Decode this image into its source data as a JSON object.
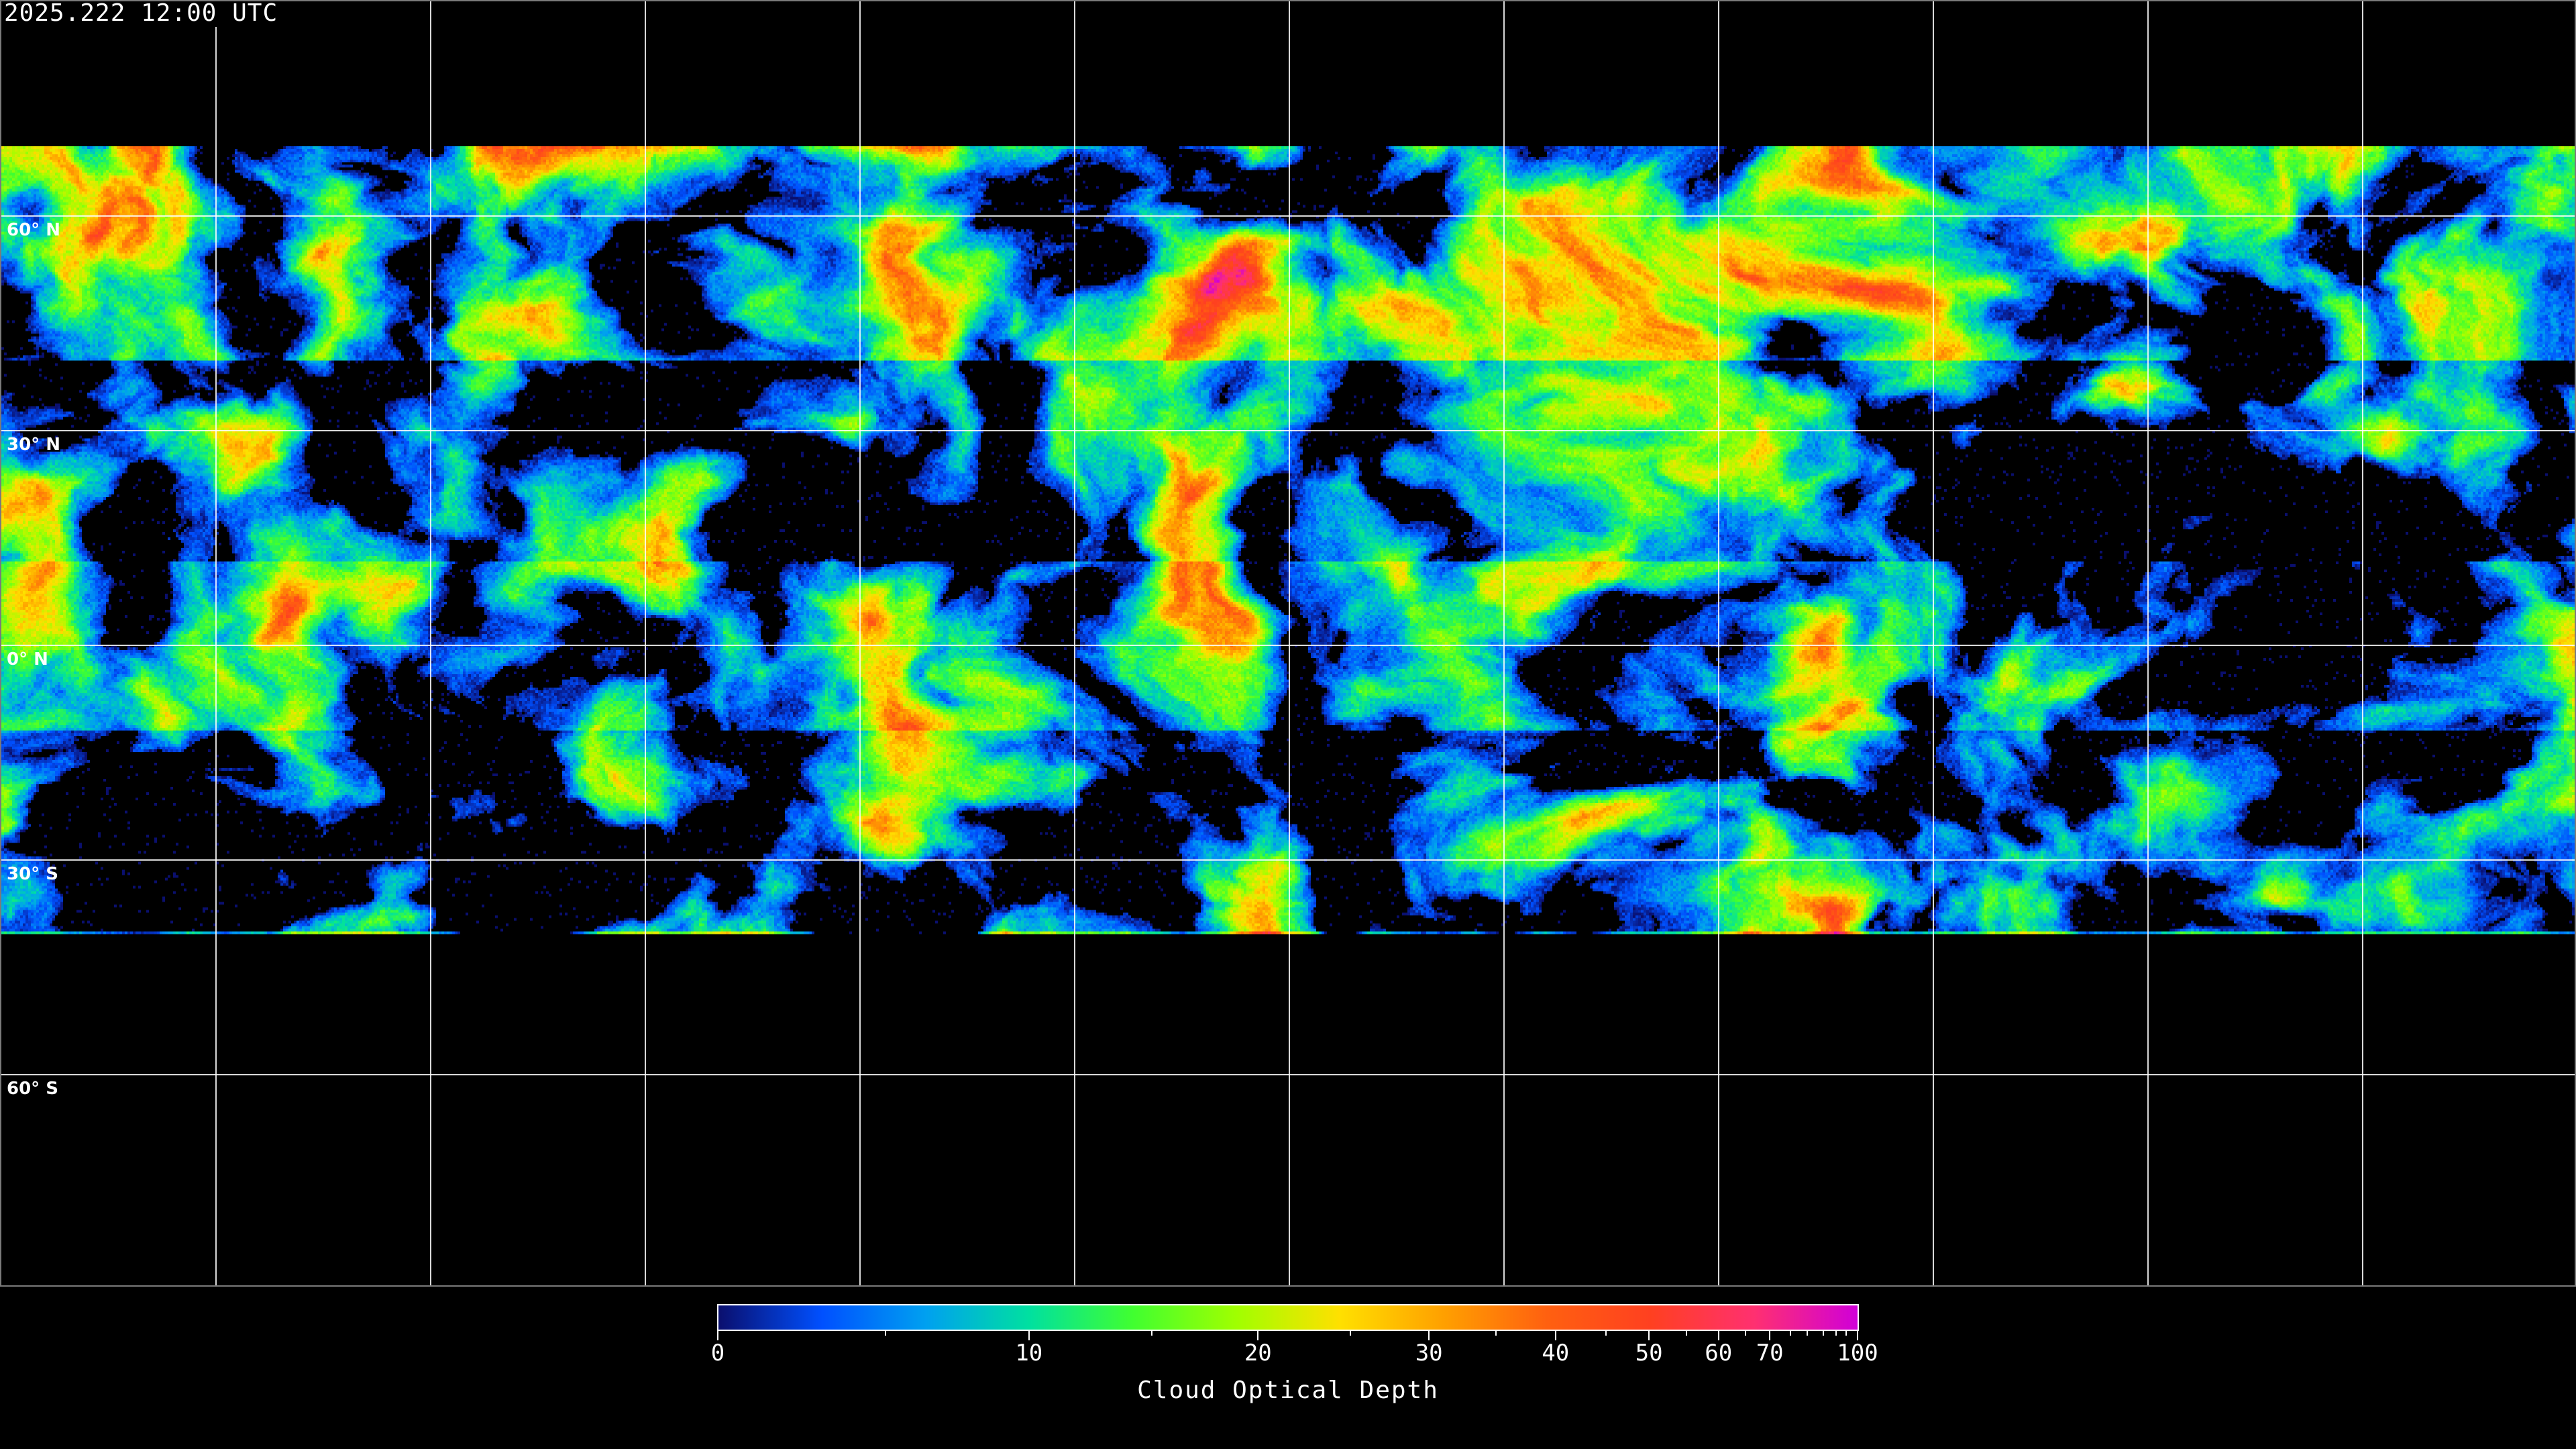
{
  "title": "2025.222 12:00 UTC",
  "map": {
    "projection": "equirectangular",
    "longitude_range": [
      -180,
      180
    ],
    "latitude_range": [
      -90,
      90
    ],
    "gridline_spacing_deg": 30,
    "lat_labels": [
      {
        "lat": 60,
        "text": "60° N"
      },
      {
        "lat": 30,
        "text": "30° N"
      },
      {
        "lat": 0,
        "text": "0° N"
      },
      {
        "lat": -30,
        "text": "30° S"
      },
      {
        "lat": -60,
        "text": "60° S"
      }
    ],
    "no_data_color": "#000000",
    "coastline_color": "#ffffff",
    "gridline_color": "#ffffff"
  },
  "colorbar": {
    "label": "Cloud Optical Depth",
    "range": [
      0,
      100
    ],
    "major_ticks": [
      {
        "value": 0,
        "text": "0"
      },
      {
        "value": 10,
        "text": "10"
      },
      {
        "value": 20,
        "text": "20"
      },
      {
        "value": 30,
        "text": "30"
      },
      {
        "value": 40,
        "text": "40"
      },
      {
        "value": 50,
        "text": "50"
      },
      {
        "value": 60,
        "text": "60"
      },
      {
        "value": 70,
        "text": "70"
      },
      {
        "value": 100,
        "text": "100"
      }
    ],
    "minor_ticks": [
      5,
      15,
      25,
      35,
      45,
      55,
      65,
      75,
      80,
      85,
      90,
      95
    ],
    "colormap": [
      "#0a0f6e",
      "#0050ff",
      "#00a0f0",
      "#00e0a0",
      "#40ff30",
      "#a0ff00",
      "#ffe000",
      "#ffa000",
      "#ff6010",
      "#ff4020",
      "#ff3070",
      "#d000d8"
    ]
  }
}
